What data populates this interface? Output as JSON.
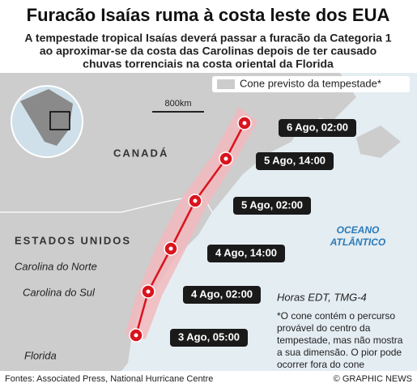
{
  "header": {
    "title": "Furacão Isaías ruma à costa leste dos EUA",
    "subtitle": [
      "A tempestade tropical Isaías deverá passar a furacão da Categoria 1",
      "ao aproximar-se da costa das Carolinas depois de ter causado",
      "chuvas torrenciais na costa oriental da Florida"
    ]
  },
  "map": {
    "legend": "Cone previsto da tempestade*",
    "scale": "800km",
    "places": [
      "CANADÁ",
      "ESTADOS UNIDOS",
      "Carolina do Norte",
      "Carolina do Sul",
      "Florida"
    ],
    "ocean": [
      "OCEANO",
      "ATLÂNTICO"
    ],
    "forecast": [
      "6 Ago, 02:00",
      "5 Ago, 14:00",
      "5 Ago, 02:00",
      "4 Ago, 14:00",
      "4 Ago, 02:00",
      "3 Ago, 05:00"
    ],
    "time_note": "Horas EDT, TMG-4",
    "note": [
      "*O cone contém o percurso",
      "provável do centro da",
      "tempestade, mas não mostra",
      "a sua dimensão. O pior pode",
      "ocorrer fora do cone"
    ]
  },
  "footer": {
    "source": "Fontes: Associated Press, National Hurricane Centre",
    "credit": "© GRAPHIC NEWS"
  }
}
